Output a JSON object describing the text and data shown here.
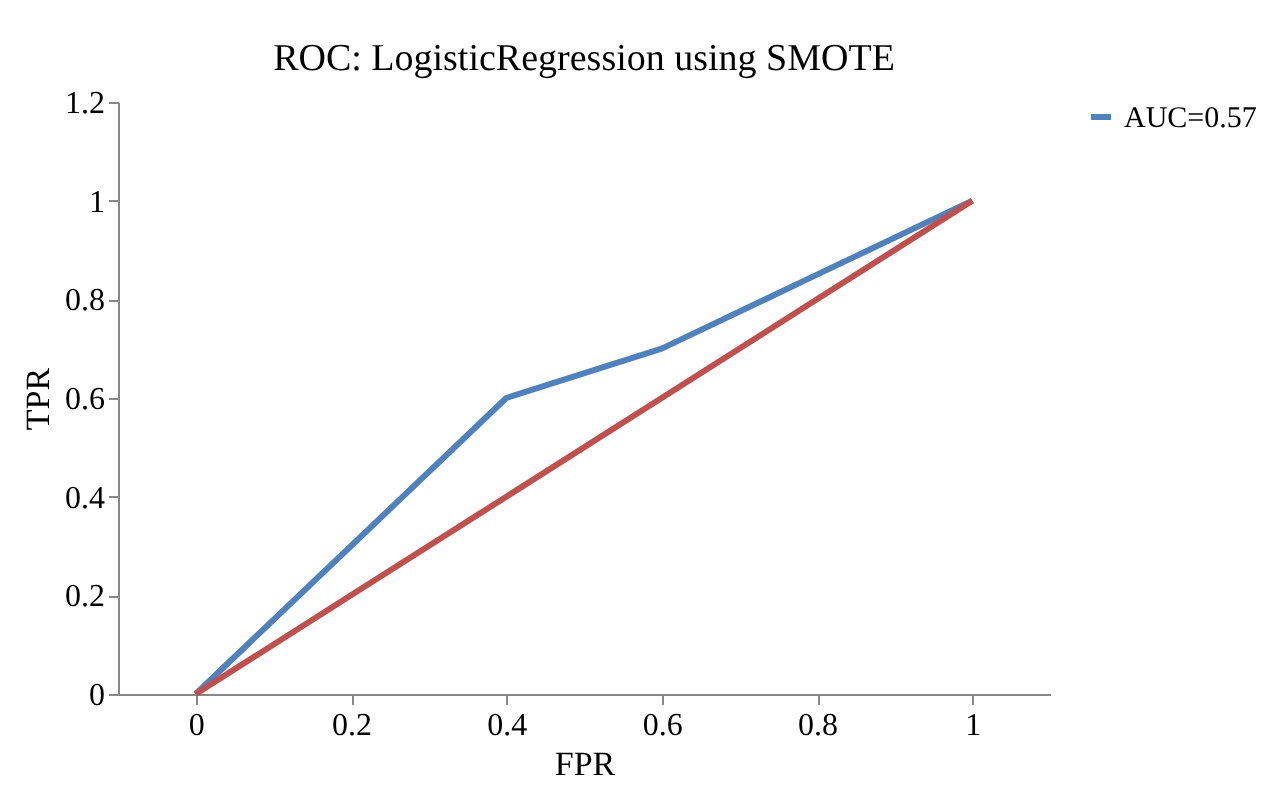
{
  "chart_data": {
    "type": "line",
    "title": "ROC: LogisticRegression using SMOTE",
    "xlabel": "FPR",
    "ylabel": "TPR",
    "categories": [
      "0",
      "0.2",
      "0.4",
      "0.6",
      "0.8",
      "1"
    ],
    "series": [
      {
        "name": "AUC=0.57",
        "color": "#4f81bd",
        "values": [
          0,
          0.3,
          0.6,
          0.7,
          0.85,
          1
        ]
      },
      {
        "color": "#c0504d",
        "values": [
          0,
          0.2,
          0.4,
          0.6,
          0.8,
          1
        ]
      }
    ],
    "ylim": [
      0,
      1.2
    ],
    "yticks": [
      0,
      0.2,
      0.4,
      0.6,
      0.8,
      1,
      1.2
    ],
    "grid": false,
    "legend": "right",
    "marker": "none",
    "line_style": "solid"
  }
}
